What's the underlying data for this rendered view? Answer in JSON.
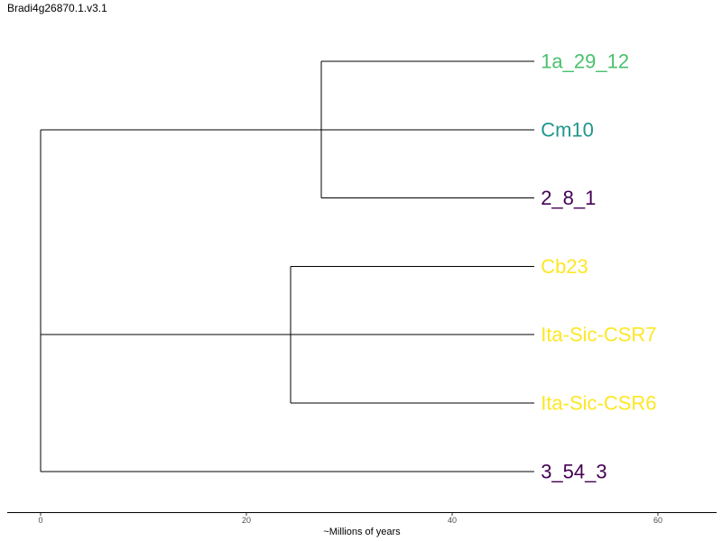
{
  "chart_data": {
    "type": "dendrogram",
    "title": "Bradi4g26870.1.v3.1",
    "xlabel": "~Millions of years",
    "xlim": [
      0,
      65
    ],
    "x_ticks": [
      0,
      20,
      40,
      60
    ],
    "grid": false,
    "legend": "none",
    "tips": [
      {
        "label": "1a_29_12",
        "color": "#4ac16d",
        "order": 1
      },
      {
        "label": "Cm10",
        "color": "#1f968b",
        "order": 2
      },
      {
        "label": "2_8_1",
        "color": "#440154",
        "order": 3
      },
      {
        "label": "Cb23",
        "color": "#fde725",
        "order": 4
      },
      {
        "label": "Ita-Sic-CSR7",
        "color": "#fde725",
        "order": 5
      },
      {
        "label": "Ita-Sic-CSR6",
        "color": "#fde725",
        "order": 6
      },
      {
        "label": "3_54_3",
        "color": "#440154",
        "order": 7
      }
    ],
    "tip_x": 48,
    "nodes": [
      {
        "name": "root",
        "x": 0,
        "children": [
          "clade_a",
          "clade_b",
          "3_54_3"
        ]
      },
      {
        "name": "clade_a",
        "x": 0,
        "children": [
          "clade_a1",
          "Cm10"
        ]
      },
      {
        "name": "clade_a1",
        "x": 27.3,
        "children": [
          "1a_29_12",
          "2_8_1"
        ]
      },
      {
        "name": "clade_b",
        "x": 0,
        "children": [
          "clade_b1",
          "Ita-Sic-CSR7"
        ]
      },
      {
        "name": "clade_b1",
        "x": 24.3,
        "children": [
          "Cb23",
          "Ita-Sic-CSR6"
        ]
      }
    ]
  }
}
